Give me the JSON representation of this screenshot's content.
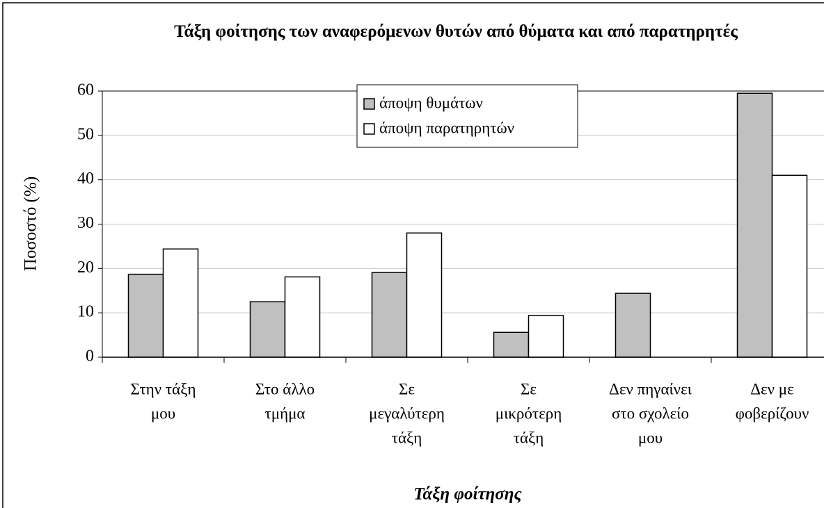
{
  "chart_data": {
    "type": "bar",
    "title": "Τάξη φοίτησης των αναφερόμενων θυτών από θύματα και από παρατηρητές",
    "y_label": "Ποσοστό (%)",
    "x_label": "Τάξη φοίτησης",
    "categories": [
      [
        "Στην τάξη",
        "μου"
      ],
      [
        "Στο άλλο",
        "τμήμα"
      ],
      [
        "Σε",
        "μεγαλύτερη",
        "τάξη"
      ],
      [
        "Σε",
        "μικρότερη",
        "τάξη"
      ],
      [
        "Δεν πηγαίνει",
        "στο σχολείο",
        "μου"
      ],
      [
        "Δεν με",
        "φοβερίζουν"
      ]
    ],
    "series": [
      {
        "name": "άποψη θυμάτων",
        "color": "#c0c0c0",
        "values": [
          18.7,
          12.5,
          19.1,
          5.6,
          14.4,
          59.5
        ]
      },
      {
        "name": "άποψη παρατηρητών",
        "color": "#ffffff",
        "values": [
          24.4,
          18.1,
          28.0,
          9.4,
          0,
          41.0
        ]
      }
    ],
    "ylim": [
      0,
      60
    ],
    "yticks": [
      0,
      10,
      20,
      30,
      40,
      50,
      60
    ],
    "grid": true
  }
}
